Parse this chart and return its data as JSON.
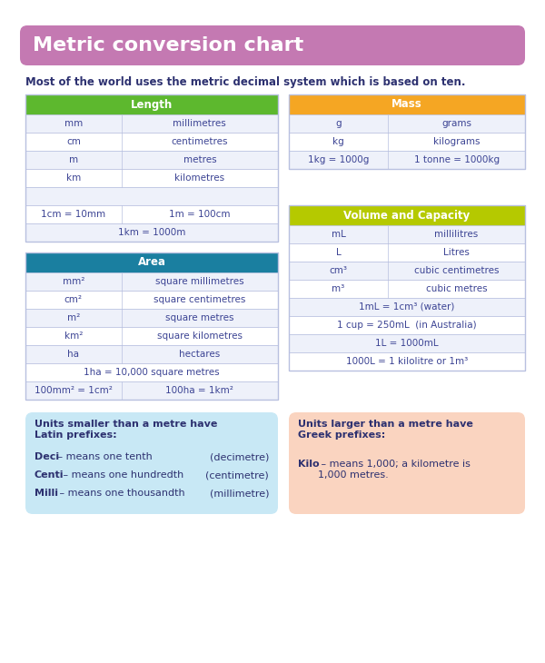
{
  "title": "Metric conversion chart",
  "subtitle": "Most of the world uses the metric decimal system which is based on ten.",
  "title_bg": "#c479b2",
  "title_fg": "#ffffff",
  "subtitle_fg": "#2d3170",
  "bg_color": "#ffffff",
  "length_header": "Length",
  "length_header_bg": "#5db82e",
  "length_rows": [
    [
      "mm",
      "millimetres"
    ],
    [
      "cm",
      "centimetres"
    ],
    [
      "m",
      "metres"
    ],
    [
      "km",
      "kilometres"
    ],
    [
      "",
      ""
    ],
    [
      "1cm = 10mm",
      "1m = 100cm"
    ],
    [
      "1km = 1000m",
      ""
    ]
  ],
  "mass_header": "Mass",
  "mass_header_bg": "#f5a623",
  "mass_rows": [
    [
      "g",
      "grams"
    ],
    [
      "kg",
      "kilograms"
    ],
    [
      "1kg = 1000g",
      "1 tonne = 1000kg"
    ]
  ],
  "area_header": "Area",
  "area_header_bg": "#1a7fa0",
  "area_rows": [
    [
      "mm²",
      "square millimetres"
    ],
    [
      "cm²",
      "square centimetres"
    ],
    [
      "m²",
      "square metres"
    ],
    [
      "km²",
      "square kilometres"
    ],
    [
      "ha",
      "hectares"
    ],
    [
      "1ha = 10,000 square metres",
      ""
    ],
    [
      "100mm² = 1cm²",
      "100ha = 1km²"
    ]
  ],
  "volume_header": "Volume and Capacity",
  "volume_header_bg": "#b5c900",
  "volume_rows": [
    [
      "mL",
      "millilitres"
    ],
    [
      "L",
      "Litres"
    ],
    [
      "cm³",
      "cubic centimetres"
    ],
    [
      "m³",
      "cubic metres"
    ],
    [
      "1mL = 1cm³ (water)",
      ""
    ],
    [
      "1 cup = 250mL  (in Australia)",
      ""
    ],
    [
      "1L = 1000mL",
      ""
    ],
    [
      "1000L = 1 kilolitre or 1m³",
      ""
    ]
  ],
  "latin_box_bg": "#c8e8f5",
  "latin_title": "Units smaller than a metre have\nLatin prefixes:",
  "latin_items": [
    [
      "Deci",
      " – means one tenth",
      "(decimetre)"
    ],
    [
      "Centi",
      " – means one hundredth",
      "(centimetre)"
    ],
    [
      "Milli",
      " – means one thousandth",
      "(millimetre)"
    ]
  ],
  "greek_box_bg": "#fad4c0",
  "greek_title": "Units larger than a metre have\nGreek prefixes:",
  "table_line_color": "#b8c0e0",
  "cell_fg": "#3c4494",
  "row_alt_bg": "#eef1fa",
  "row_white_bg": "#ffffff"
}
